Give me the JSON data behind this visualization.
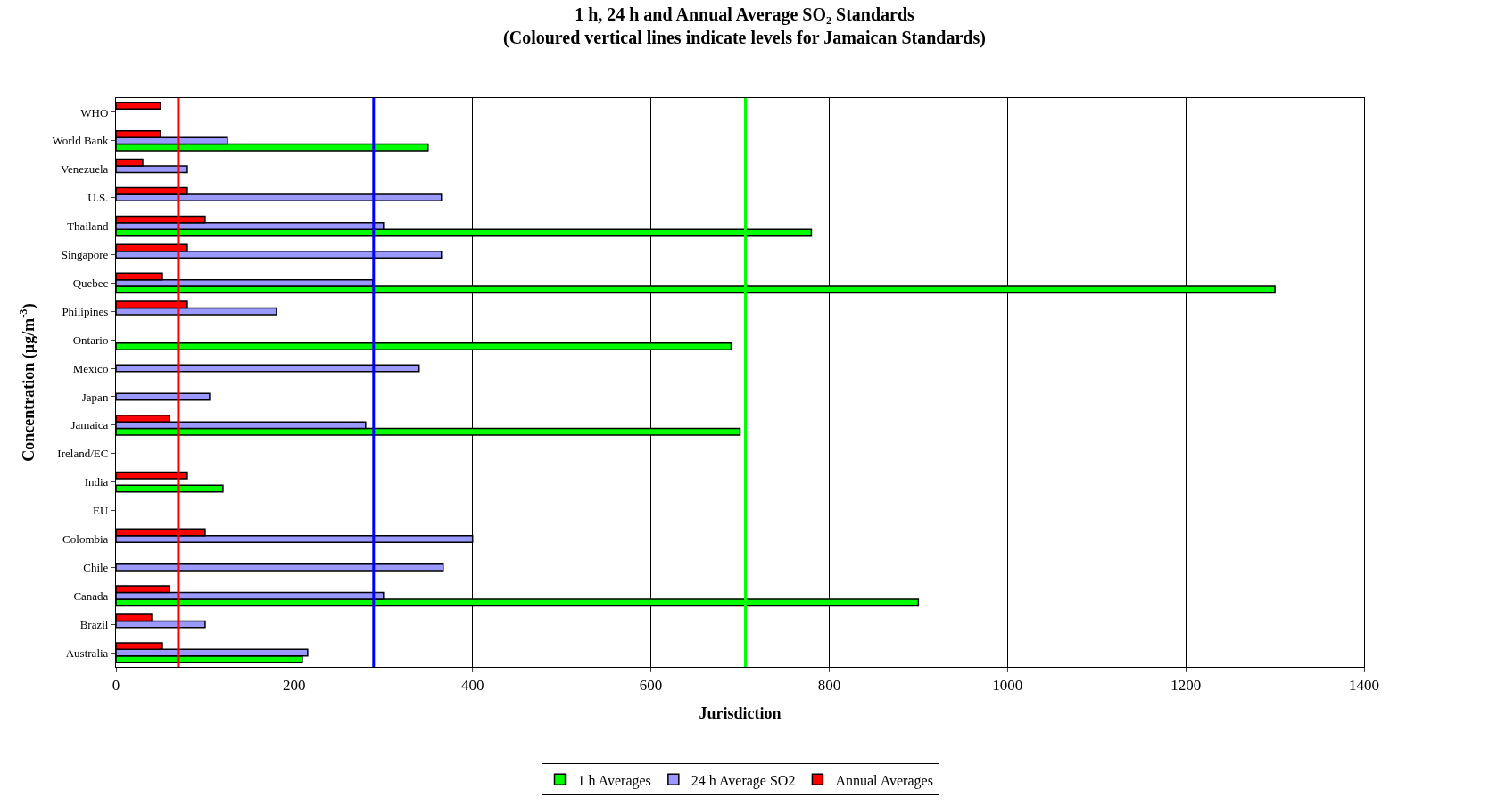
{
  "chart_data": {
    "type": "bar",
    "orientation": "horizontal",
    "title": "1 h, 24 h and Annual Average SO₂ Standards",
    "subtitle": "(Coloured vertical lines indicate levels for Jamaican Standards)",
    "xlabel": "Jurisdiction",
    "ylabel": "Concentration (µg/m$^{-3}$)",
    "categories": [
      "WHO",
      "World Bank",
      "Venezuela",
      "U.S.",
      "Thailand",
      "Singapore",
      "Quebec",
      "Philipines",
      "Ontario",
      "Mexico",
      "Japan",
      "Jamaica",
      "Ireland/EC",
      "India",
      "EU",
      "Colombia",
      "Chile",
      "Canada",
      "Brazil",
      "Australia"
    ],
    "series": [
      {
        "name": "1 h Averages",
        "color": "#00ff00",
        "values": [
          null,
          350,
          null,
          null,
          780,
          null,
          1300,
          null,
          690,
          null,
          null,
          700,
          null,
          120,
          null,
          null,
          null,
          900,
          null,
          209
        ]
      },
      {
        "name": "24 h Average SO2",
        "color": "#9999ff",
        "values": [
          null,
          125,
          80,
          365,
          300,
          365,
          288,
          180,
          null,
          340,
          105,
          280,
          null,
          null,
          null,
          400,
          367,
          300,
          100,
          215
        ]
      },
      {
        "name": "Annual Averages",
        "color": "#ff0000",
        "values": [
          50,
          50,
          30,
          80,
          100,
          80,
          52,
          80,
          null,
          null,
          null,
          60,
          null,
          80,
          null,
          100,
          null,
          60,
          40,
          52
        ]
      }
    ],
    "xlim": [
      0,
      1400
    ],
    "xticks": [
      0,
      200,
      400,
      600,
      800,
      1000,
      1200,
      1400
    ],
    "ref_lines": [
      {
        "axis": "x",
        "value": 70,
        "color": "#ff0000"
      },
      {
        "axis": "x",
        "value": 289,
        "color": "#0000ff"
      },
      {
        "axis": "x",
        "value": 706,
        "color": "#00ff00"
      }
    ],
    "grid": "x",
    "legend": "bottom"
  }
}
